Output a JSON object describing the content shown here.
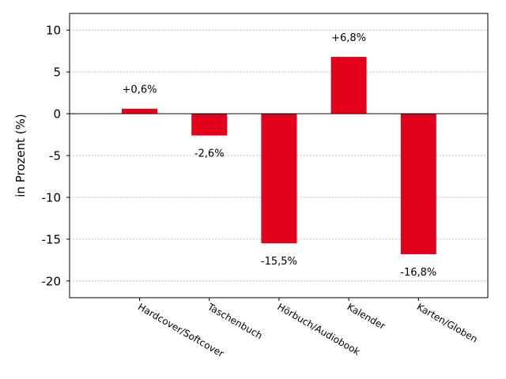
{
  "chart_data": {
    "type": "bar",
    "categories": [
      "Hardcover/Softcover",
      "Taschenbuch",
      "Hörbuch/Audiobook",
      "Kalender",
      "Karten/Globen"
    ],
    "values": [
      0.6,
      -2.6,
      -15.5,
      6.8,
      -16.8
    ],
    "data_labels": [
      "+0,6%",
      "-2,6%",
      "-15,5%",
      "+6,8%",
      "-16,8%"
    ],
    "ylabel": "in Prozent (%)",
    "ylim": [
      -22,
      12
    ],
    "yticks": [
      10,
      5,
      0,
      -5,
      -10,
      -15,
      -20
    ],
    "ytick_labels": [
      "10",
      "5",
      "0",
      "-5",
      "-10",
      "-15",
      "-20"
    ],
    "grid": "horizontal dotted",
    "bar_color": "#e2001a"
  }
}
